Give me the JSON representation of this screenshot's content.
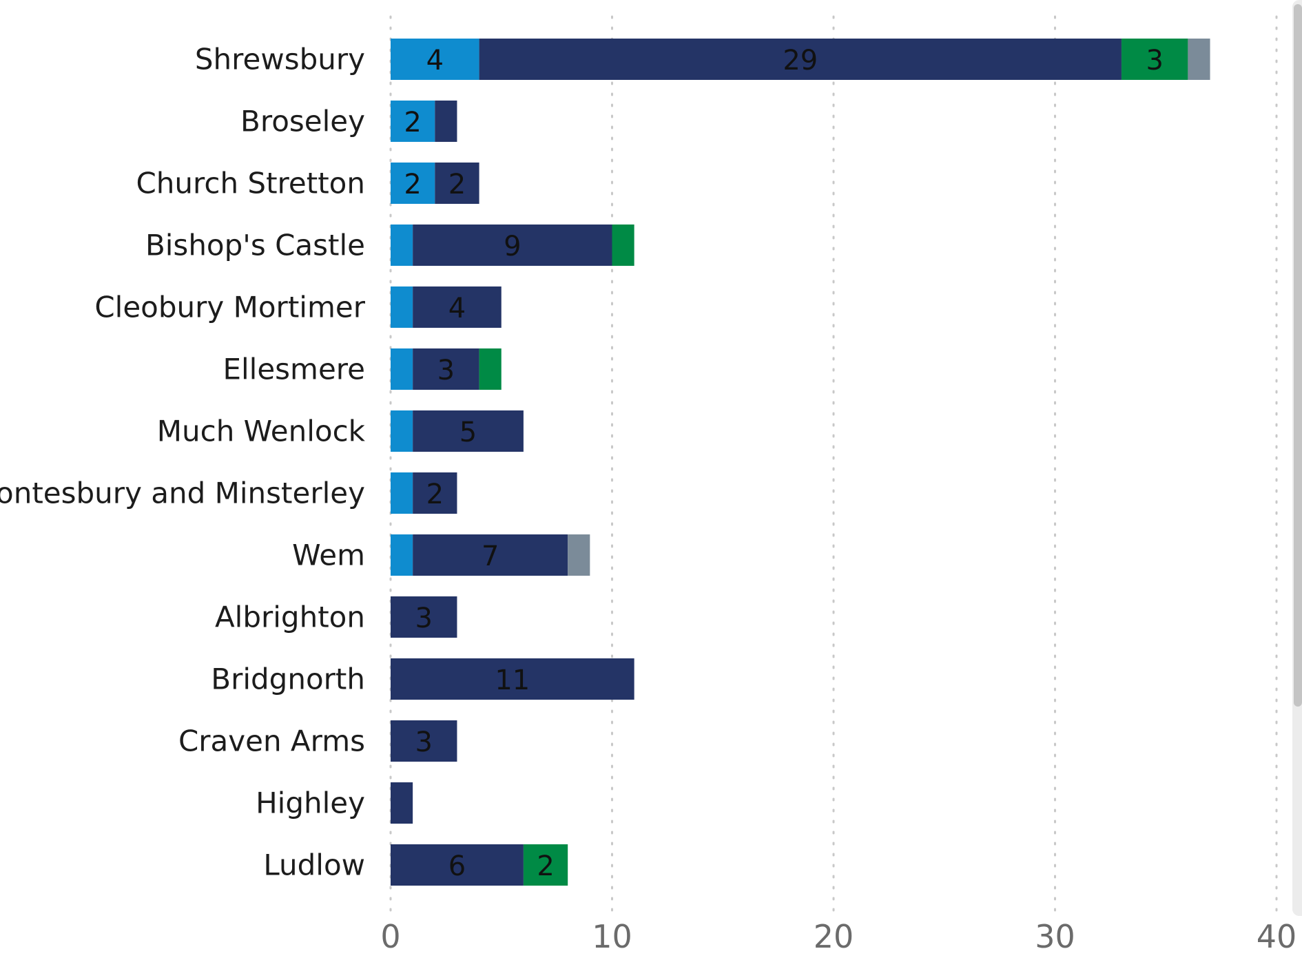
{
  "chart_data": {
    "type": "bar",
    "orientation": "horizontal",
    "stacked": true,
    "categories": [
      "Shrewsbury",
      "Broseley",
      "Church Stretton",
      "Bishop's Castle",
      "Cleobury Mortimer",
      "Ellesmere",
      "Much Wenlock",
      "Pontesbury and Minsterley",
      "Wem",
      "Albrighton",
      "Bridgnorth",
      "Craven Arms",
      "Highley",
      "Ludlow"
    ],
    "series": [
      {
        "color": "#0f8ccf",
        "values": [
          4,
          2,
          2,
          1,
          1,
          1,
          1,
          1,
          1,
          0,
          0,
          0,
          0,
          0
        ],
        "labels": [
          "4",
          "2",
          "2",
          "",
          "",
          "",
          "",
          "",
          "",
          "",
          "",
          "",
          "",
          ""
        ]
      },
      {
        "color": "#243466",
        "values": [
          29,
          1,
          2,
          9,
          4,
          3,
          5,
          2,
          7,
          3,
          11,
          3,
          1,
          6
        ],
        "labels": [
          "29",
          "",
          "2",
          "9",
          "4",
          "3",
          "5",
          "2",
          "7",
          "3",
          "11",
          "3",
          "",
          "6"
        ]
      },
      {
        "color": "#008a45",
        "values": [
          3,
          0,
          0,
          1,
          0,
          1,
          0,
          0,
          0,
          0,
          0,
          0,
          0,
          2
        ],
        "labels": [
          "3",
          "",
          "",
          "",
          "",
          "",
          "",
          "",
          "",
          "",
          "",
          "",
          "",
          "2"
        ]
      },
      {
        "color": "#7b8b99",
        "values": [
          1,
          0,
          0,
          0,
          0,
          0,
          0,
          0,
          1,
          0,
          0,
          0,
          0,
          0
        ],
        "labels": [
          "",
          "",
          "",
          "",
          "",
          "",
          "",
          "",
          "",
          "",
          "",
          "",
          "",
          ""
        ]
      }
    ],
    "xlim": [
      0,
      40
    ],
    "xticks": [
      "0",
      "10",
      "20",
      "30",
      "40"
    ],
    "grid": "vertical dotted",
    "legend": "none",
    "title": "",
    "xlabel": "",
    "ylabel": ""
  }
}
